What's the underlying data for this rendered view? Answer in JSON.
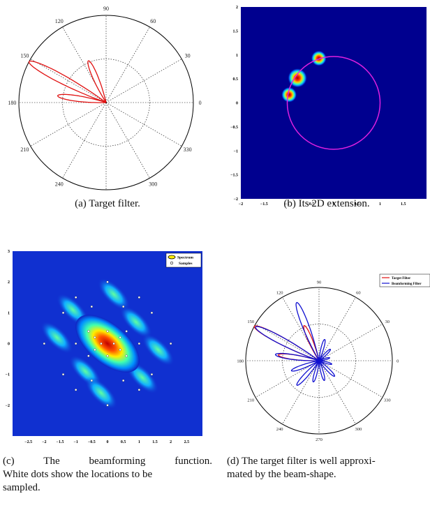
{
  "figure": {
    "captions": {
      "a": "(a) Target filter.",
      "b": "(b) Its 2D extension.",
      "c_line1": "(c) The beamforming function.",
      "c_line2": "White dots show the locations to be",
      "c_line3": "sampled.",
      "d_line1": "(d) The target filter is well approxi-",
      "d_line2": "mated by the beam-shape."
    },
    "angle_labels": [
      "90",
      "60",
      "30",
      "0",
      "330",
      "300",
      "270",
      "240",
      "210",
      "180",
      "150",
      "120"
    ],
    "legend_d": {
      "target": "Target Filter",
      "beamforming": "Beamforming Filter"
    },
    "legend_c": {
      "spectrum": "Spectrum",
      "samples": "Samples"
    },
    "colors": {
      "target": "#e01010",
      "beam": "#1010d0",
      "circle": "#e020e0",
      "background_b": "#00008f"
    }
  },
  "chart_data": [
    {
      "type": "polar",
      "panel": "a",
      "theta_ticks_deg": [
        0,
        30,
        60,
        90,
        120,
        150,
        180,
        210,
        240,
        270,
        300,
        330
      ],
      "series": [
        {
          "lobes": [
            {
              "angle_deg": 152,
              "radius": 1.0
            },
            {
              "angle_deg": 113,
              "radius": 0.52
            },
            {
              "angle_deg": 172,
              "radius": 0.56
            }
          ]
        }
      ]
    },
    {
      "type": "heatmap",
      "panel": "b",
      "x_ticks": [
        -2,
        -1.5,
        -1,
        -0.5,
        0,
        0.5,
        1,
        1.5
      ],
      "y_ticks": [
        2,
        1.5,
        1,
        0.5,
        0,
        -0.5,
        -1,
        -1.5,
        -2
      ],
      "xlim": [
        -2,
        2
      ],
      "ylim": [
        -2,
        2
      ],
      "unit_circle": {
        "cx": 0,
        "cy": 0,
        "r": 1
      },
      "blobs": [
        {
          "x": -0.78,
          "y": 0.52,
          "intensity": 1.0
        },
        {
          "x": -0.32,
          "y": 0.93,
          "intensity": 0.8
        },
        {
          "x": -0.96,
          "y": 0.17,
          "intensity": 0.8
        }
      ]
    },
    {
      "type": "heatmap",
      "panel": "c",
      "x_ticks": [
        -2.5,
        -2,
        -1.5,
        -1,
        -0.5,
        0,
        0.5,
        1,
        1.5,
        2,
        2.5
      ],
      "y_ticks": [
        3,
        2,
        1,
        0,
        -1,
        -2
      ],
      "xlim": [
        -3,
        3
      ],
      "ylim": [
        -3,
        3
      ],
      "samples": [
        [
          -2,
          0
        ],
        [
          2,
          0
        ],
        [
          0,
          2
        ],
        [
          0,
          -2
        ],
        [
          -1.4,
          1
        ],
        [
          1.4,
          1
        ],
        [
          -1.4,
          -1
        ],
        [
          1.4,
          -1
        ],
        [
          -1,
          1.5
        ],
        [
          1,
          1.5
        ],
        [
          -1,
          -1.5
        ],
        [
          1,
          -1.5
        ],
        [
          -0.5,
          1.2
        ],
        [
          0.5,
          1.2
        ],
        [
          -0.5,
          -1.2
        ],
        [
          0.5,
          -1.2
        ],
        [
          -0.6,
          0.4
        ],
        [
          0.6,
          0.4
        ],
        [
          -0.6,
          -0.4
        ],
        [
          0.6,
          -0.4
        ],
        [
          -0.2,
          0
        ],
        [
          0.2,
          0
        ],
        [
          0,
          0.4
        ],
        [
          0,
          -0.4
        ],
        [
          -0.4,
          0.2
        ],
        [
          0.4,
          0.2
        ],
        [
          -0.4,
          -0.2
        ],
        [
          0.4,
          -0.2
        ],
        [
          -1.0,
          0
        ],
        [
          1.0,
          0
        ]
      ]
    },
    {
      "type": "polar",
      "panel": "d",
      "theta_ticks_deg": [
        0,
        30,
        60,
        90,
        120,
        150,
        180,
        210,
        240,
        270,
        300,
        330
      ],
      "series": [
        {
          "name": "Target Filter",
          "lobes": [
            {
              "angle_deg": 152,
              "radius": 1.0
            },
            {
              "angle_deg": 113,
              "radius": 0.52
            },
            {
              "angle_deg": 172,
              "radius": 0.56
            }
          ]
        },
        {
          "name": "Beamforming Filter",
          "lobes": [
            {
              "angle_deg": 152,
              "radius": 0.98
            },
            {
              "angle_deg": 111,
              "radius": 0.85
            },
            {
              "angle_deg": 172,
              "radius": 0.6
            },
            {
              "angle_deg": 200,
              "radius": 0.4
            },
            {
              "angle_deg": 228,
              "radius": 0.45
            },
            {
              "angle_deg": 255,
              "radius": 0.3
            },
            {
              "angle_deg": 285,
              "radius": 0.28
            },
            {
              "angle_deg": 315,
              "radius": 0.3
            },
            {
              "angle_deg": 345,
              "radius": 0.18
            },
            {
              "angle_deg": 15,
              "radius": 0.15
            },
            {
              "angle_deg": 45,
              "radius": 0.22
            },
            {
              "angle_deg": 75,
              "radius": 0.3
            }
          ]
        }
      ]
    }
  ]
}
